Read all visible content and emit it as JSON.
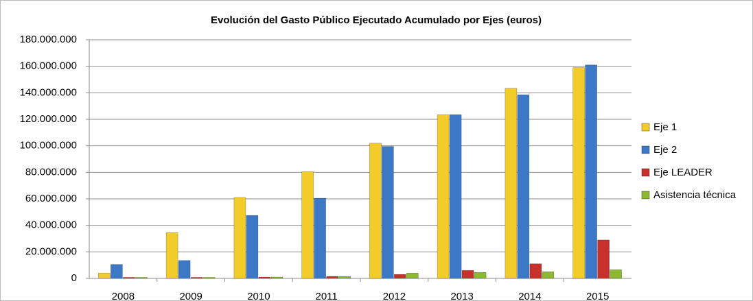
{
  "chart_data": {
    "type": "bar",
    "title": "Evolución del Gasto Público Ejecutado Acumulado por Ejes (euros)",
    "categories": [
      "2008",
      "2009",
      "2010",
      "2011",
      "2012",
      "2013",
      "2014",
      "2015"
    ],
    "series": [
      {
        "name": "Eje 1",
        "color": "#f2cd2a",
        "values": [
          4000000,
          34500000,
          61000000,
          80500000,
          102000000,
          123500000,
          143500000,
          159000000
        ]
      },
      {
        "name": "Eje 2",
        "color": "#3c78c6",
        "values": [
          10500000,
          13500000,
          47500000,
          60500000,
          99500000,
          123500000,
          138500000,
          161000000
        ]
      },
      {
        "name": "Eje LEADER",
        "color": "#c8302c",
        "values": [
          0,
          0,
          1000000,
          1500000,
          3000000,
          6000000,
          11000000,
          29000000
        ]
      },
      {
        "name": "Asistencia técnica",
        "color": "#8cb832",
        "values": [
          0,
          500000,
          1000000,
          1500000,
          4000000,
          4500000,
          5000000,
          6500000
        ]
      }
    ],
    "ylim": [
      0,
      180000000
    ],
    "yticks": [
      0,
      {
        "value": 20000000,
        "label": "20.000.000"
      },
      {
        "value": 40000000,
        "label": "40.000.000"
      },
      {
        "value": 60000000,
        "label": "60.000.000"
      },
      {
        "value": 80000000,
        "label": "80.000.000"
      },
      {
        "value": 100000000,
        "label": "100.000.000"
      },
      {
        "value": 120000000,
        "label": "120.000.000"
      },
      {
        "value": 140000000,
        "label": "140.000.000"
      },
      {
        "value": 160000000,
        "label": "160.000.000"
      },
      {
        "value": 180000000,
        "label": "180.000.000"
      }
    ],
    "grid": true,
    "legend": "right"
  }
}
